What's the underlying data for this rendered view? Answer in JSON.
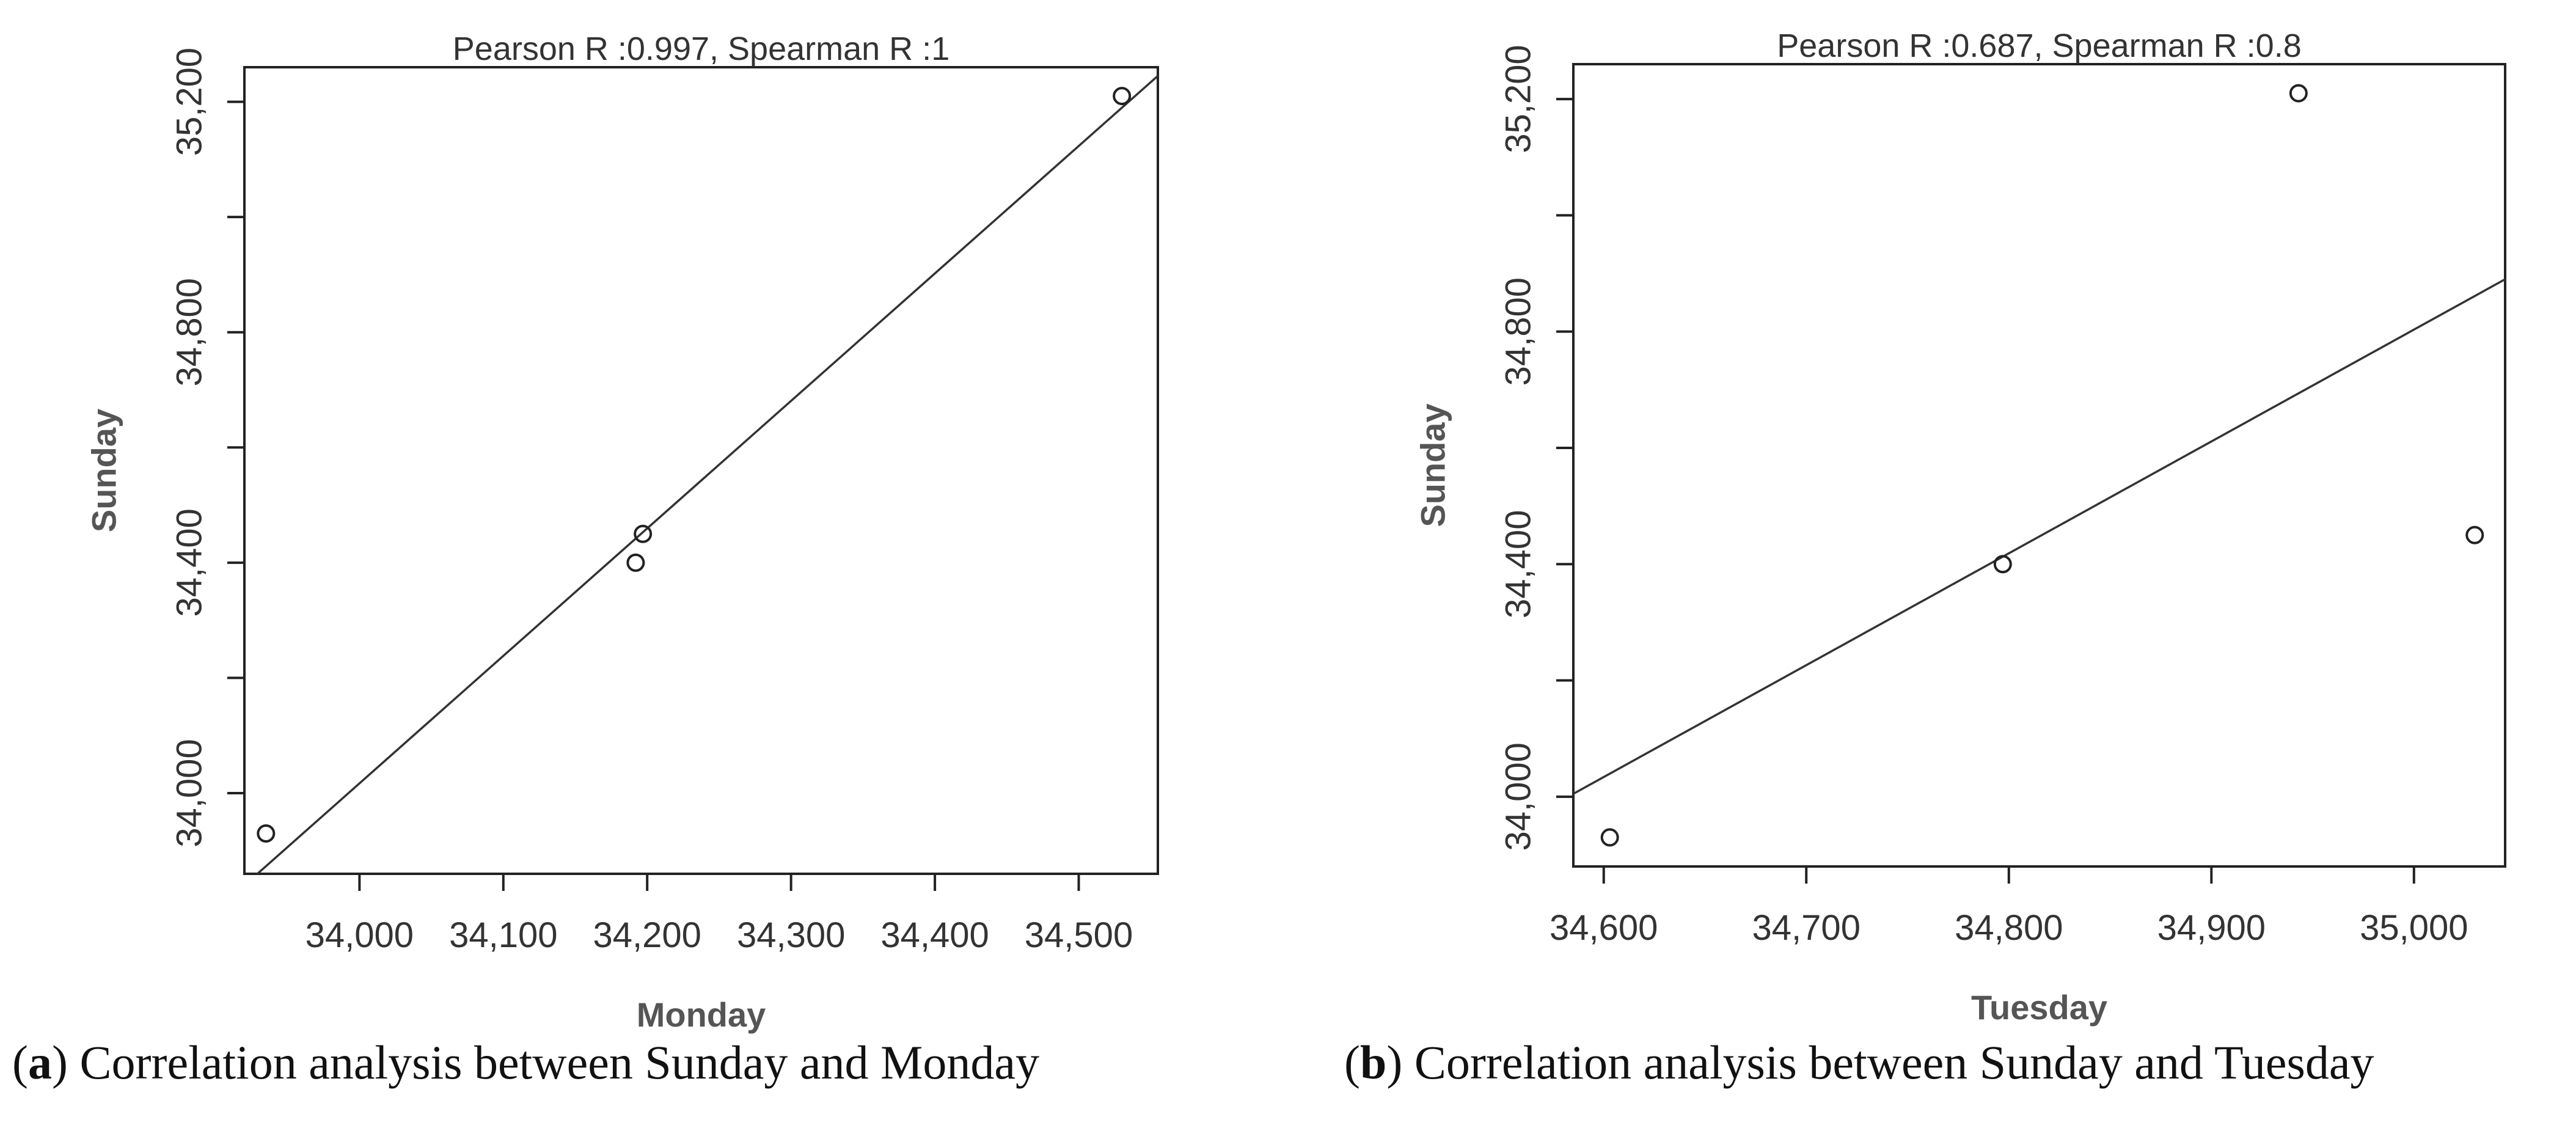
{
  "chart_data": [
    {
      "type": "scatter",
      "title": "Pearson R :0.997, Spearman R :1",
      "xlabel": "Monday",
      "ylabel": "Sunday",
      "xlim": [
        33920,
        34555
      ],
      "ylim": [
        33860,
        35260
      ],
      "xticks": [
        34000,
        34100,
        34200,
        34300,
        34400,
        34500
      ],
      "xtick_labels": [
        "34,000",
        "34,100",
        "34,200",
        "34,300",
        "34,400",
        "34,500"
      ],
      "yticks": [
        34000,
        34200,
        34400,
        34600,
        34800,
        35000,
        35200
      ],
      "ytick_labels": [
        "34,000",
        "",
        "34,400",
        "",
        "34,800",
        "",
        "35,200"
      ],
      "points": [
        {
          "x": 33935,
          "y": 33930
        },
        {
          "x": 34192,
          "y": 34400
        },
        {
          "x": 34197,
          "y": 34450
        },
        {
          "x": 34530,
          "y": 35210
        }
      ],
      "fit_line": {
        "x1": 33920,
        "y1": 33840,
        "x2": 34555,
        "y2": 35245
      },
      "grid": false,
      "caption_label": "a",
      "caption_text": "Correlation analysis between Sunday and Monday"
    },
    {
      "type": "scatter",
      "title": "Pearson R :0.687, Spearman R :0.8",
      "xlabel": "Tuesday",
      "ylabel": "Sunday",
      "xlim": [
        34585,
        35045
      ],
      "ylim": [
        33880,
        35260
      ],
      "xticks": [
        34600,
        34700,
        34800,
        34900,
        35000
      ],
      "xtick_labels": [
        "34,600",
        "34,700",
        "34,800",
        "34,900",
        "35,000"
      ],
      "yticks": [
        34000,
        34200,
        34400,
        34600,
        34800,
        35000,
        35200
      ],
      "ytick_labels": [
        "34,000",
        "",
        "34,400",
        "",
        "34,800",
        "",
        "35,200"
      ],
      "points": [
        {
          "x": 34603,
          "y": 33930
        },
        {
          "x": 34797,
          "y": 34400
        },
        {
          "x": 34943,
          "y": 35210
        },
        {
          "x": 35030,
          "y": 34450
        }
      ],
      "fit_line": {
        "x1": 34585,
        "y1": 34005,
        "x2": 35045,
        "y2": 34890
      },
      "grid": false,
      "caption_label": "b",
      "caption_text": "Correlation analysis between Sunday and Tuesday"
    }
  ]
}
